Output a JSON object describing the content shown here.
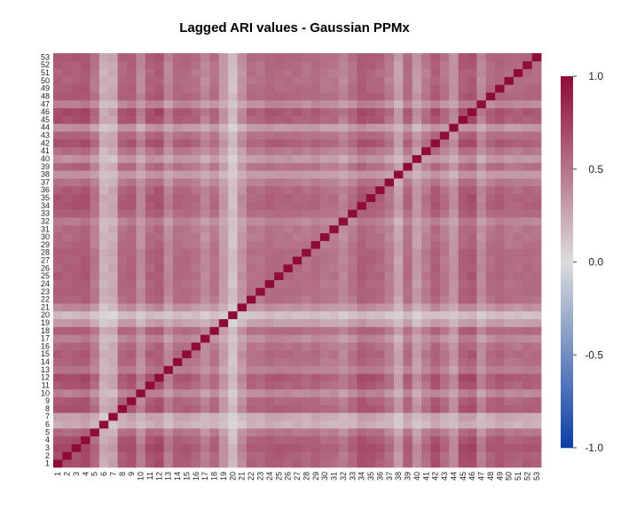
{
  "chart_data": {
    "type": "heatmap",
    "title": "Lagged ARI values - Gaussian PPMx",
    "xlabel": "",
    "ylabel": "",
    "x_labels": [
      "1",
      "2",
      "3",
      "4",
      "5",
      "6",
      "7",
      "8",
      "9",
      "10",
      "11",
      "12",
      "13",
      "14",
      "15",
      "16",
      "17",
      "18",
      "19",
      "20",
      "21",
      "22",
      "23",
      "24",
      "25",
      "26",
      "27",
      "28",
      "29",
      "30",
      "31",
      "32",
      "33",
      "34",
      "35",
      "36",
      "37",
      "38",
      "39",
      "40",
      "41",
      "42",
      "43",
      "44",
      "45",
      "46",
      "47",
      "48",
      "49",
      "50",
      "51",
      "52",
      "53"
    ],
    "y_labels": [
      "1",
      "2",
      "3",
      "4",
      "5",
      "6",
      "7",
      "8",
      "9",
      "10",
      "11",
      "12",
      "13",
      "14",
      "15",
      "16",
      "17",
      "18",
      "19",
      "20",
      "21",
      "22",
      "23",
      "24",
      "25",
      "26",
      "27",
      "28",
      "29",
      "30",
      "31",
      "32",
      "33",
      "34",
      "35",
      "36",
      "37",
      "38",
      "39",
      "40",
      "41",
      "42",
      "43",
      "44",
      "45",
      "46",
      "47",
      "48",
      "49",
      "50",
      "51",
      "52",
      "53"
    ],
    "row_affinity": [
      0.72,
      0.72,
      0.73,
      0.72,
      0.6,
      0.3,
      0.34,
      0.68,
      0.68,
      0.5,
      0.7,
      0.74,
      0.52,
      0.63,
      0.66,
      0.62,
      0.5,
      0.62,
      0.38,
      0.22,
      0.46,
      0.63,
      0.62,
      0.64,
      0.66,
      0.65,
      0.65,
      0.62,
      0.62,
      0.6,
      0.6,
      0.52,
      0.62,
      0.7,
      0.7,
      0.67,
      0.57,
      0.38,
      0.62,
      0.42,
      0.58,
      0.72,
      0.6,
      0.42,
      0.72,
      0.75,
      0.5,
      0.65,
      0.66,
      0.64,
      0.64,
      0.66,
      0.65
    ],
    "diagonal_value": 1.0,
    "value_range": [
      -1.0,
      1.0
    ],
    "colorbar": {
      "ticks": [
        1.0,
        0.5,
        0.0,
        -0.5,
        -1.0
      ],
      "tick_labels": [
        "1.0",
        "0.5",
        "0.0",
        "-0.5",
        "-1.0"
      ],
      "colors": {
        "high": "#8e0b3a",
        "mid": "#dcdcdc",
        "low": "#0a3ea8"
      }
    },
    "legend_position": "right",
    "grid": false
  }
}
